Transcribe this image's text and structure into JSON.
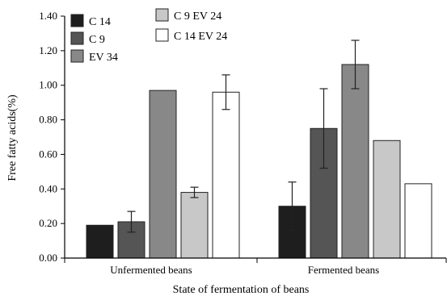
{
  "chart_data": {
    "type": "bar",
    "xlabel": "State of fermentation of beans",
    "ylabel": "Free fatty acids(%)",
    "ylim": [
      0,
      1.4
    ],
    "yticks": [
      "0.00",
      "0.20",
      "0.40",
      "0.60",
      "0.80",
      "1.00",
      "1.20",
      "1.40"
    ],
    "categories": [
      "Unfermented beans",
      "Fermented beans"
    ],
    "series": [
      {
        "name": "C 14",
        "color": "#1e1e1e",
        "values": [
          0.19,
          0.3
        ],
        "errors": [
          null,
          0.14
        ]
      },
      {
        "name": "C 9",
        "color": "#555555",
        "values": [
          0.21,
          0.75
        ],
        "errors": [
          0.06,
          0.23
        ]
      },
      {
        "name": "EV 34",
        "color": "#888888",
        "values": [
          0.97,
          1.12
        ],
        "errors": [
          null,
          0.14
        ]
      },
      {
        "name": "C 9 EV 24",
        "color": "#c8c8c8",
        "values": [
          0.38,
          0.68
        ],
        "errors": [
          0.03,
          null
        ]
      },
      {
        "name": "C 14 EV 24",
        "color": "#ffffff",
        "values": [
          0.96,
          0.43
        ],
        "errors": [
          0.1,
          null
        ]
      }
    ],
    "legend": "top-left, two columns",
    "grid": false
  }
}
